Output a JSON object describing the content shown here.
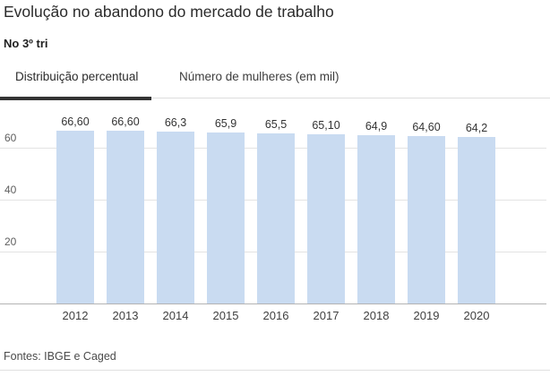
{
  "header": {
    "title": "Evolução no abandono do mercado de trabalho",
    "subtitle": "No 3º tri"
  },
  "tabs": [
    {
      "label": "Distribuição percentual",
      "active": true
    },
    {
      "label": "Número de mulheres (em mil)",
      "active": false
    }
  ],
  "chart_data": {
    "type": "bar",
    "title": "Evolução no abandono do mercado de trabalho",
    "subtitle": "No 3º tri",
    "categories": [
      "2012",
      "2013",
      "2014",
      "2015",
      "2016",
      "2017",
      "2018",
      "2019",
      "2020"
    ],
    "values": [
      66.6,
      66.6,
      66.3,
      65.9,
      65.5,
      65.1,
      64.9,
      64.6,
      64.2
    ],
    "value_labels": [
      "66,60",
      "66,60",
      "66,3",
      "65,9",
      "65,5",
      "65,10",
      "64,9",
      "64,60",
      "64,2"
    ],
    "xlabel": "",
    "ylabel": "",
    "ylim": [
      0,
      75
    ],
    "yticks": [
      20,
      40,
      60
    ],
    "grid": true,
    "legend": "none",
    "bar_color": "#c9dbf1"
  },
  "footer": {
    "source": "Fontes: IBGE e Caged"
  },
  "colors": {
    "bar": "#c9dbf1",
    "active_tab_underline": "#333333",
    "gridline": "#e3e3e3",
    "baseline": "#b3b3b3"
  }
}
